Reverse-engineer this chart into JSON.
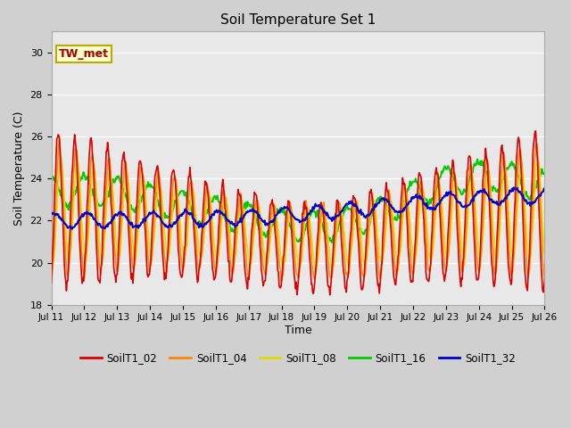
{
  "title": "Soil Temperature Set 1",
  "xlabel": "Time",
  "ylabel": "Soil Temperature (C)",
  "ylim": [
    18,
    31
  ],
  "yticks": [
    18,
    20,
    22,
    24,
    26,
    28,
    30
  ],
  "fig_bg": "#d0d0d0",
  "plot_bg": "#e8e8e8",
  "series": {
    "SoilT1_02": {
      "color": "#dd0000",
      "lw": 1.2
    },
    "SoilT1_04": {
      "color": "#ff8800",
      "lw": 1.2
    },
    "SoilT1_08": {
      "color": "#dddd00",
      "lw": 1.2
    },
    "SoilT1_16": {
      "color": "#00cc00",
      "lw": 1.5
    },
    "SoilT1_32": {
      "color": "#0000cc",
      "lw": 1.5
    }
  },
  "annotation": {
    "text": "TW_met",
    "fontsize": 9,
    "color": "#aa0000",
    "bg": "#ffffcc",
    "border": "#bbaa00"
  },
  "legend_colors": [
    "#dd0000",
    "#ff8800",
    "#dddd00",
    "#00cc00",
    "#0000cc"
  ],
  "legend_labels": [
    "SoilT1_02",
    "SoilT1_04",
    "SoilT1_08",
    "SoilT1_16",
    "SoilT1_32"
  ],
  "grid_color": "white",
  "grid_lw": 1.0
}
